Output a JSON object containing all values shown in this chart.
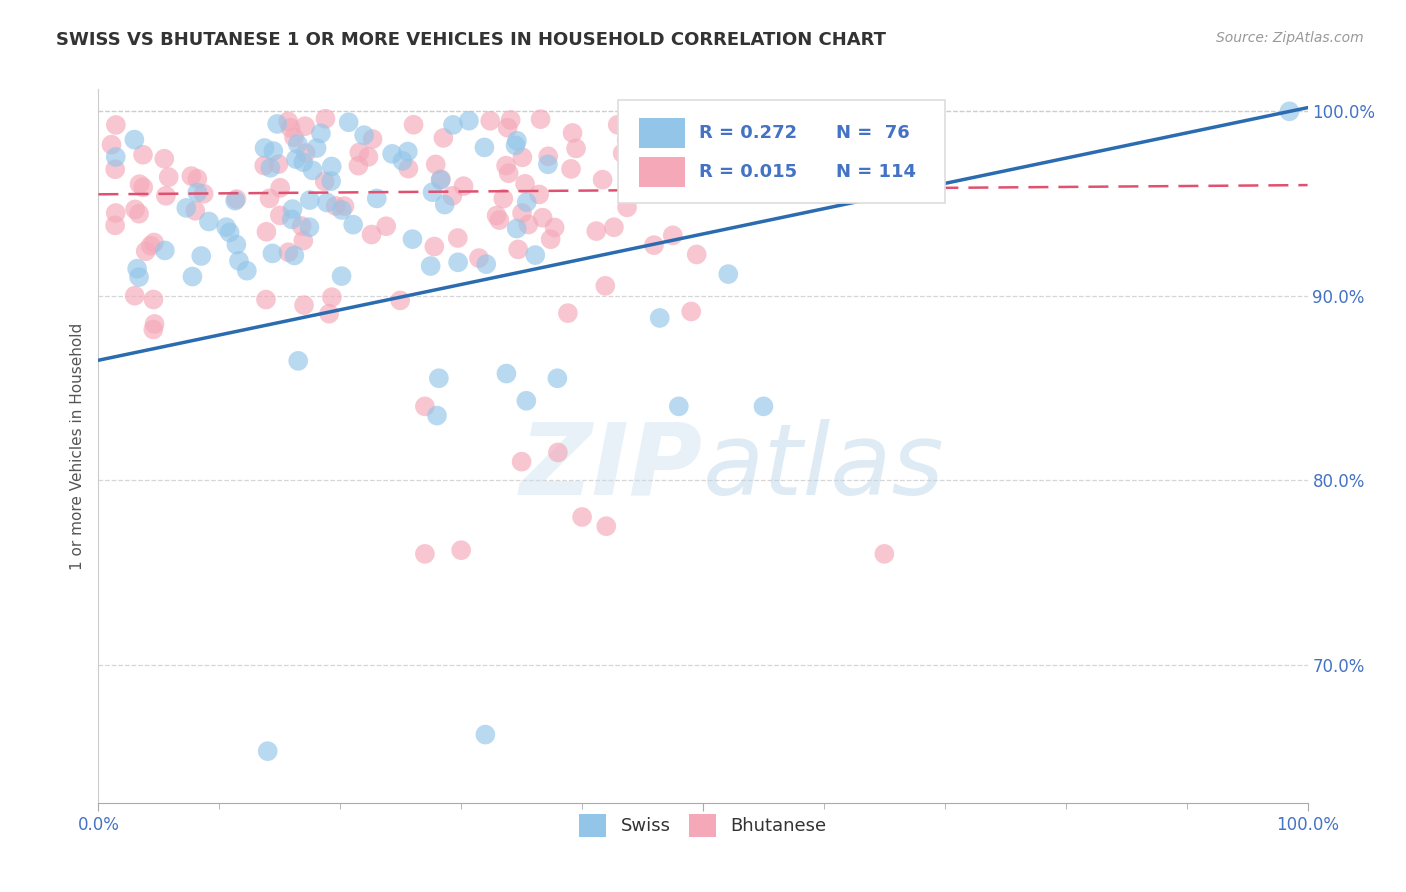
{
  "title": "SWISS VS BHUTANESE 1 OR MORE VEHICLES IN HOUSEHOLD CORRELATION CHART",
  "source": "Source: ZipAtlas.com",
  "ylabel": "1 or more Vehicles in Household",
  "swiss_color": "#93c5e8",
  "bhutanese_color": "#f4a8b8",
  "line_swiss_color": "#2b6cb0",
  "line_bhut_color": "#e05070",
  "swiss_R": 0.272,
  "swiss_N": 76,
  "bhutanese_R": 0.015,
  "bhutanese_N": 114,
  "watermark_zip": "ZIP",
  "watermark_atlas": "atlas",
  "legend_swiss": "Swiss",
  "legend_bhutanese": "Bhutanese",
  "xlim": [
    0.0,
    1.0
  ],
  "ylim": [
    0.625,
    1.012
  ],
  "yticks": [
    0.7,
    0.8,
    0.9,
    1.0
  ],
  "ytick_labels": [
    "70.0%",
    "80.0%",
    "90.0%",
    "100.0%"
  ],
  "xtick_labels": [
    "0.0%",
    "100.0%"
  ],
  "xtick_positions": [
    0.0,
    1.0
  ],
  "swiss_line_x0": 0.0,
  "swiss_line_y0": 0.865,
  "swiss_line_x1": 1.0,
  "swiss_line_y1": 1.002,
  "bhut_line_x0": 0.0,
  "bhut_line_y0": 0.955,
  "bhut_line_x1": 1.0,
  "bhut_line_y1": 0.96
}
